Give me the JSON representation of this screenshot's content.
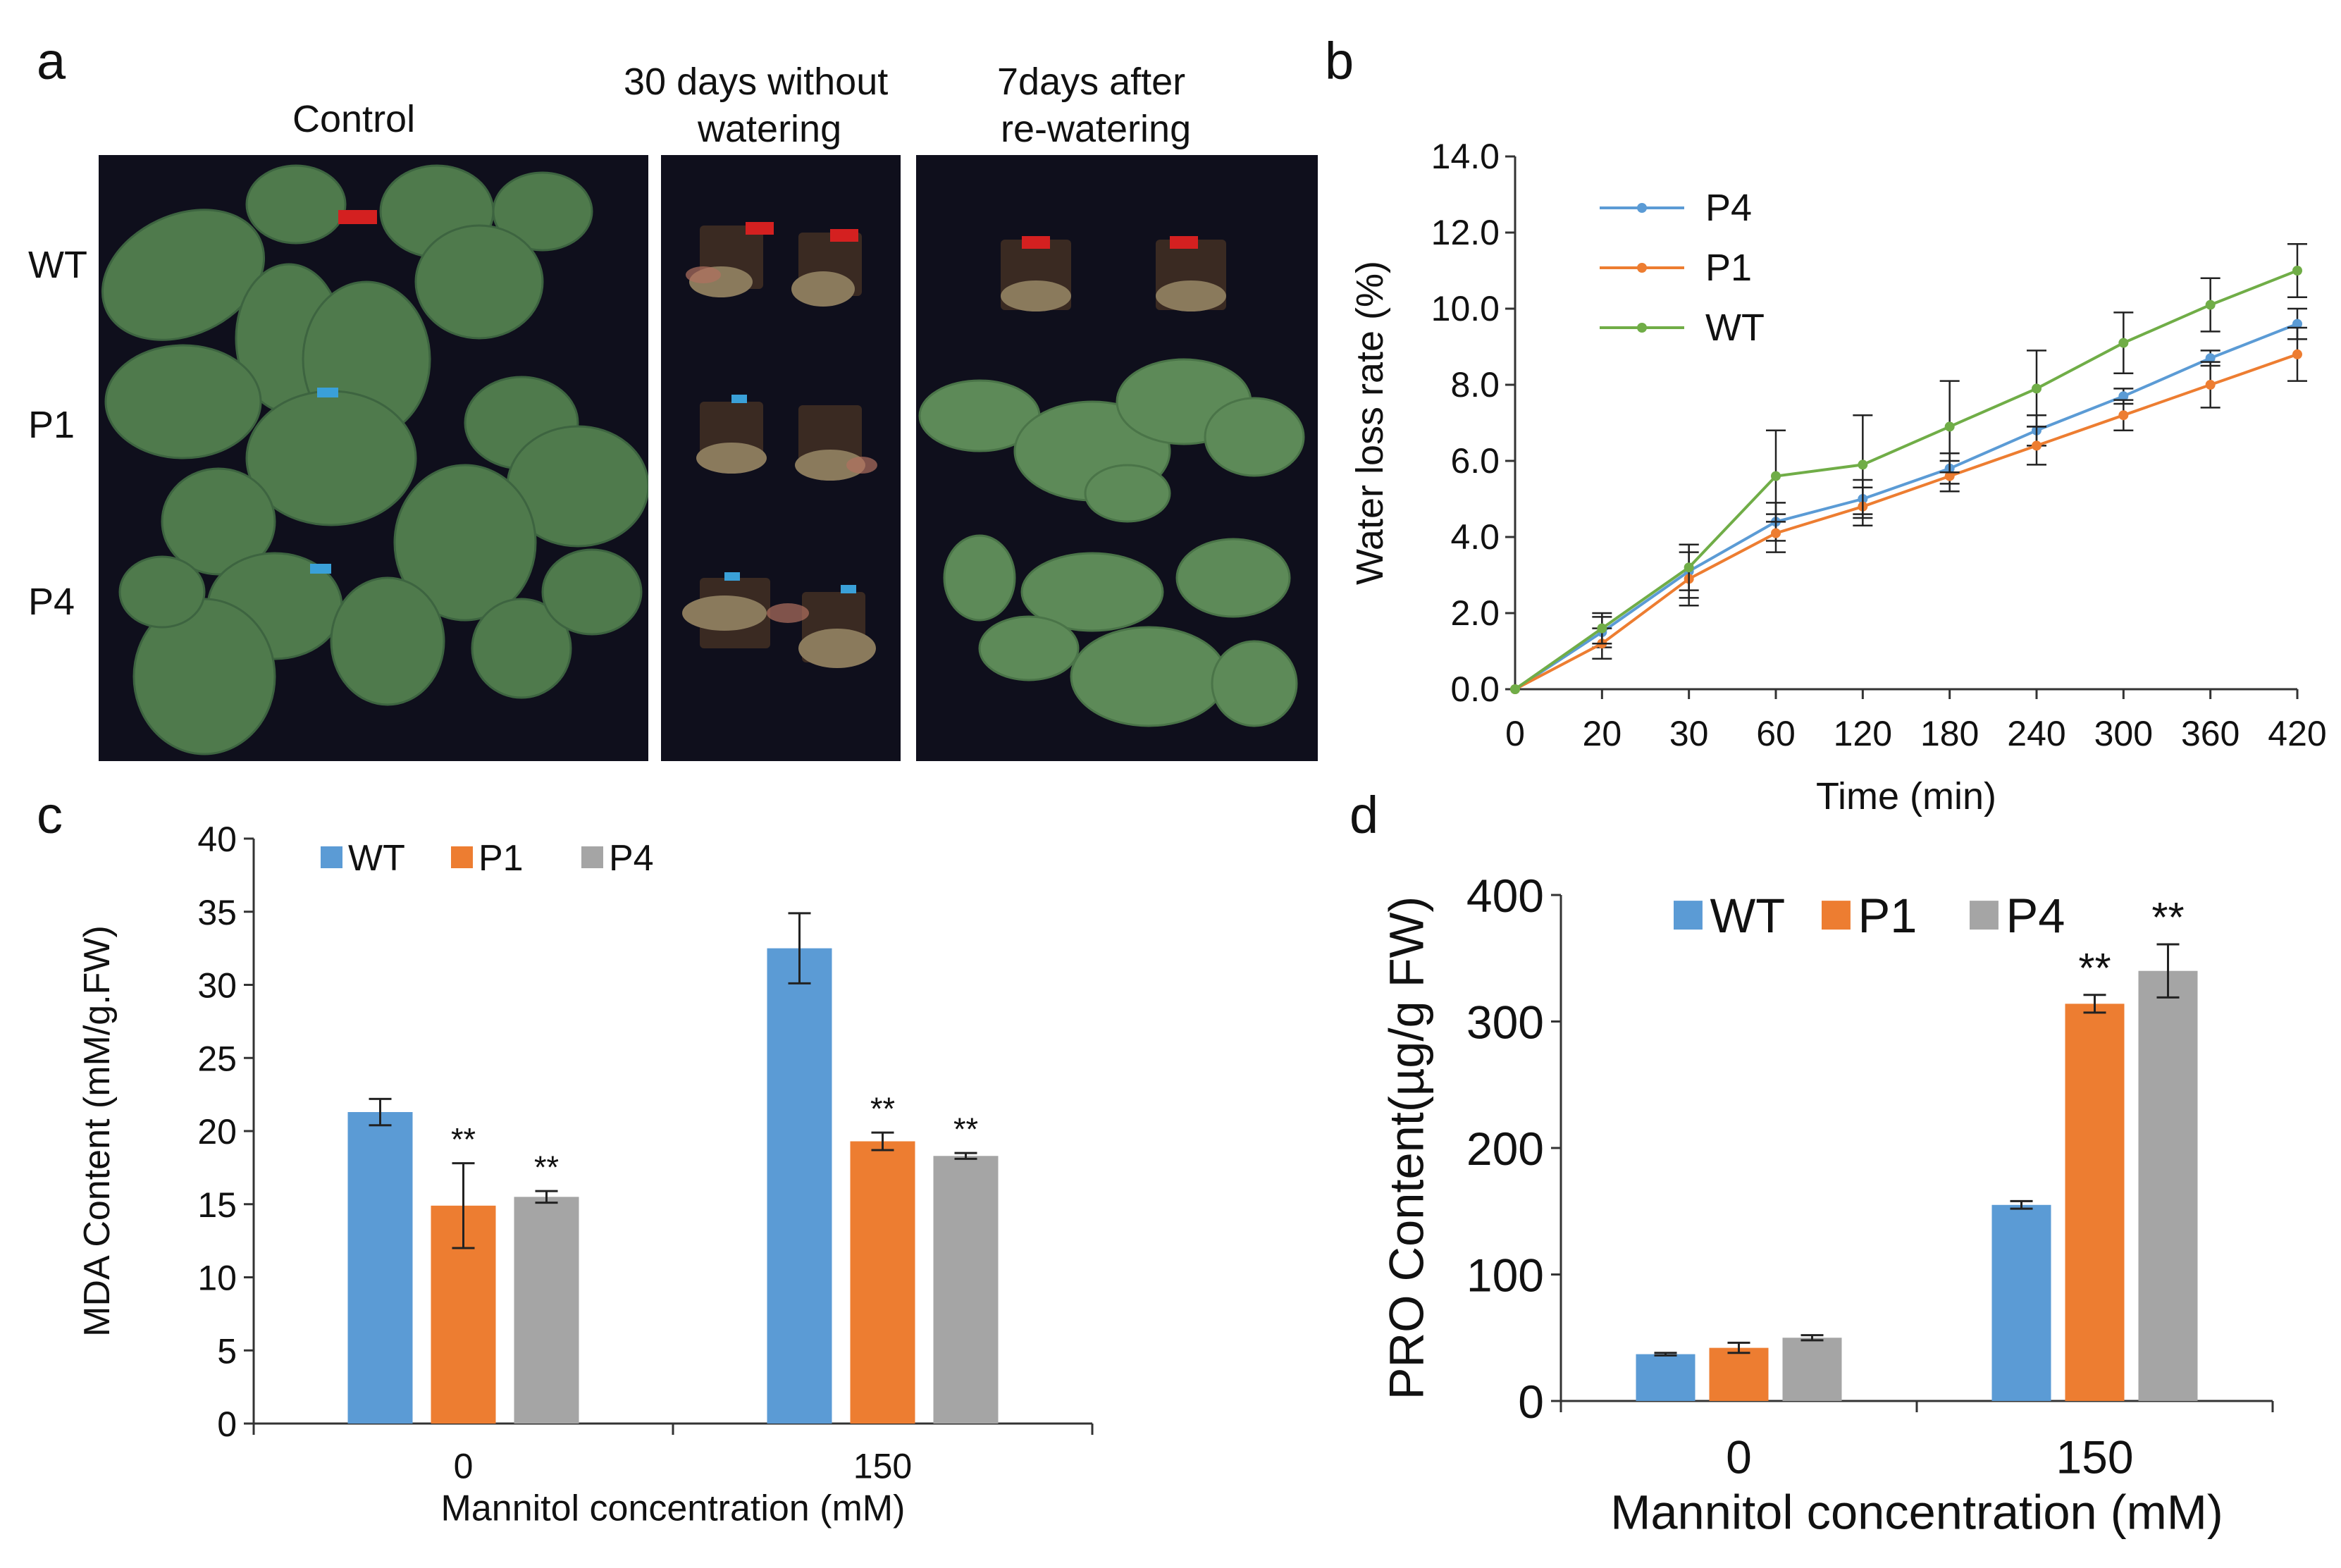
{
  "panels": {
    "a": {
      "letter": "a",
      "columns": [
        "Control",
        "30 days without watering",
        "7days after re-watering"
      ],
      "column_lines": [
        [
          "Control"
        ],
        [
          "30 days without",
          "watering"
        ],
        [
          "7days after",
          "re-watering"
        ]
      ],
      "rows": [
        "WT",
        "P1",
        "P4"
      ]
    },
    "b": {
      "letter": "b"
    },
    "c": {
      "letter": "c"
    },
    "d": {
      "letter": "d"
    }
  },
  "colors": {
    "WT": "#5b9bd5",
    "P1": "#ed7d31",
    "P4": "#a5a5a5",
    "WT_line": "#70ad47",
    "P4_line": "#5b9bd5",
    "P1_line": "#ed7d31"
  },
  "chart_data": [
    {
      "id": "b",
      "type": "line",
      "title": "",
      "xlabel": "Time (min)",
      "ylabel": "Water loss rate (%)",
      "categories": [
        "0",
        "20",
        "30",
        "60",
        "120",
        "180",
        "240",
        "300",
        "360",
        "420"
      ],
      "ylim": [
        0,
        14
      ],
      "yticks": [
        "0.0",
        "2.0",
        "4.0",
        "6.0",
        "8.0",
        "10.0",
        "12.0",
        "14.0"
      ],
      "legend": "top-left",
      "series": [
        {
          "name": "P4",
          "values": [
            0,
            1.5,
            3.1,
            4.4,
            5.0,
            5.8,
            6.8,
            7.7,
            8.7,
            9.6
          ],
          "errors": [
            0,
            0.4,
            0.7,
            0.5,
            0.5,
            0.4,
            0.4,
            0.2,
            0.2,
            0.4
          ]
        },
        {
          "name": "P1",
          "values": [
            0,
            1.2,
            2.9,
            4.1,
            4.8,
            5.6,
            6.4,
            7.2,
            8.0,
            8.8
          ],
          "errors": [
            0,
            0.4,
            0.7,
            0.5,
            0.5,
            0.4,
            0.5,
            0.4,
            0.6,
            0.7
          ]
        },
        {
          "name": "WT",
          "values": [
            0,
            1.6,
            3.2,
            5.6,
            5.9,
            6.9,
            7.9,
            9.1,
            10.1,
            11.0
          ],
          "errors": [
            0,
            0.4,
            0.6,
            1.2,
            1.3,
            1.2,
            1.0,
            0.8,
            0.7,
            0.7
          ]
        }
      ]
    },
    {
      "id": "c",
      "type": "bar",
      "title": "",
      "xlabel": "Mannitol concentration (mM)",
      "ylabel": "MDA Content (mM/g.FW)",
      "categories": [
        "0",
        "150"
      ],
      "ylim": [
        0,
        40
      ],
      "yticks": [
        "0",
        "5",
        "10",
        "15",
        "20",
        "25",
        "30",
        "35",
        "40"
      ],
      "legend": "top-left",
      "series": [
        {
          "name": "WT",
          "values": [
            21.3,
            32.5
          ],
          "errors": [
            0.9,
            2.4
          ],
          "marks": [
            "",
            ""
          ]
        },
        {
          "name": "P1",
          "values": [
            14.9,
            19.3
          ],
          "errors": [
            2.9,
            0.6
          ],
          "marks": [
            "**",
            "**"
          ]
        },
        {
          "name": "P4",
          "values": [
            15.5,
            18.3
          ],
          "errors": [
            0.4,
            0.2
          ],
          "marks": [
            "**",
            "**"
          ]
        }
      ]
    },
    {
      "id": "d",
      "type": "bar",
      "title": "",
      "xlabel": "Mannitol concentration (mM)",
      "ylabel": "PRO Content(µg/g FW)",
      "categories": [
        "0",
        "150"
      ],
      "ylim": [
        0,
        400
      ],
      "yticks": [
        "0",
        "100",
        "200",
        "300",
        "400"
      ],
      "legend": "top-left",
      "series": [
        {
          "name": "WT",
          "values": [
            37,
            155
          ],
          "errors": [
            1,
            3
          ],
          "marks": [
            "",
            ""
          ]
        },
        {
          "name": "P1",
          "values": [
            42,
            314
          ],
          "errors": [
            4,
            7
          ],
          "marks": [
            "",
            "**"
          ]
        },
        {
          "name": "P4",
          "values": [
            50,
            340
          ],
          "errors": [
            2,
            21
          ],
          "marks": [
            "",
            "**"
          ]
        }
      ]
    }
  ]
}
